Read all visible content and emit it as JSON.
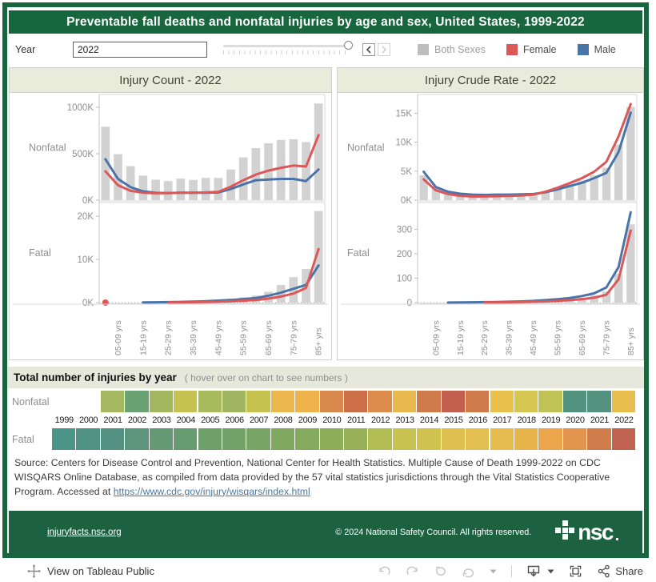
{
  "title": "Preventable fall deaths and nonfatal injuries by age and sex, United States, 1999-2022",
  "colors": {
    "brand_green": "#17663e",
    "footer_green": "#1d6240",
    "panel_header_bg": "#e9ecda",
    "section_header_bg": "#e6e8dc",
    "bar": "#d2d2d2",
    "female": "#dc5757",
    "male": "#4a74a8",
    "legend_gray": "#bdbdbd"
  },
  "year_control": {
    "label": "Year",
    "value": "2022"
  },
  "legend": {
    "items": [
      {
        "label": "Both Sexes",
        "color": "#bdbdbd"
      },
      {
        "label": "Female",
        "color": "#dc5757"
      },
      {
        "label": "Male",
        "color": "#4a74a8"
      }
    ]
  },
  "chart_data": {
    "type": "bar+line",
    "x_tick_labels": [
      "05-09 yrs",
      "15-19 yrs",
      "25-29 yrs",
      "35-39 yrs",
      "45-49 yrs",
      "55-59 yrs",
      "65-69 yrs",
      "75-79 yrs",
      "85+ yrs"
    ],
    "groups_count": 18,
    "panels": [
      {
        "id": "count",
        "title": "Injury Count - 2022",
        "rows": [
          {
            "label": "Nonfatal",
            "unit": "thousands",
            "ymax": 1060,
            "yticks": [
              {
                "v": 0,
                "t": "0K"
              },
              {
                "v": 500,
                "t": "500K"
              },
              {
                "v": 1000,
                "t": "1000K"
              }
            ],
            "bars": [
              790,
              495,
              365,
              265,
              220,
              205,
              232,
              218,
              240,
              240,
              330,
              460,
              560,
              612,
              648,
              655,
              625,
              1040
            ],
            "female": [
              310,
              160,
              100,
              80,
              74,
              77,
              80,
              80,
              83,
              88,
              145,
              215,
              275,
              318,
              348,
              372,
              362,
              700
            ],
            "male": [
              440,
              228,
              140,
              95,
              78,
              76,
              80,
              80,
              80,
              83,
              120,
              170,
              215,
              222,
              228,
              228,
              205,
              330
            ]
          },
          {
            "label": "Fatal",
            "unit": "thousands",
            "ymax": 21.5,
            "yticks": [
              {
                "v": 0,
                "t": "0K"
              },
              {
                "v": 10,
                "t": "10K"
              },
              {
                "v": 20,
                "t": "20K"
              }
            ],
            "zero_dotted": true,
            "bars": [
              0.05,
              0.02,
              0.02,
              0.06,
              0.1,
              0.15,
              0.22,
              0.3,
              0.45,
              0.65,
              0.9,
              1.25,
              1.65,
              2.5,
              4.1,
              5.9,
              7.8,
              21.2
            ],
            "female": [
              0,
              0,
              0,
              0.02,
              0.03,
              0.05,
              0.07,
              0.1,
              0.15,
              0.2,
              0.3,
              0.45,
              0.62,
              0.92,
              1.4,
              2.1,
              3.4,
              12.4
            ],
            "male": [
              0,
              0,
              0.01,
              0.05,
              0.08,
              0.12,
              0.16,
              0.22,
              0.32,
              0.46,
              0.62,
              0.82,
              1.05,
              1.6,
              2.3,
              3.2,
              4.1,
              8.6
            ],
            "female_start": 5,
            "male_start": 3,
            "dot": {
              "series": "female",
              "index": 0,
              "value": 0
            }
          }
        ]
      },
      {
        "id": "rate",
        "title": "Injury Crude Rate - 2022",
        "rows": [
          {
            "label": "Nonfatal",
            "unit": "per 100,000 (thousands)",
            "ymax": 17,
            "yticks": [
              {
                "v": 0,
                "t": "0K"
              },
              {
                "v": 5,
                "t": "5K"
              },
              {
                "v": 10,
                "t": "10K"
              },
              {
                "v": 15,
                "t": "15K"
              }
            ],
            "bars": [
              4.3,
              2.0,
              1.25,
              0.95,
              0.82,
              0.8,
              0.85,
              0.85,
              0.9,
              1.0,
              1.4,
              2.0,
              2.7,
              3.4,
              4.3,
              5.6,
              9.6,
              16.1
            ],
            "female": [
              3.6,
              1.7,
              1.05,
              0.75,
              0.62,
              0.63,
              0.68,
              0.73,
              0.8,
              0.95,
              1.45,
              2.15,
              2.95,
              3.8,
              4.9,
              6.6,
              11.0,
              16.6
            ],
            "male": [
              4.9,
              2.25,
              1.45,
              1.1,
              0.95,
              0.9,
              0.95,
              0.95,
              1.0,
              1.05,
              1.35,
              1.85,
              2.45,
              3.0,
              3.8,
              4.7,
              8.3,
              15.1
            ]
          },
          {
            "label": "Fatal",
            "unit": "per 100,000",
            "ymax": 380,
            "yticks": [
              {
                "v": 0,
                "t": "0"
              },
              {
                "v": 100,
                "t": "100"
              },
              {
                "v": 200,
                "t": "200"
              },
              {
                "v": 300,
                "t": "300"
              }
            ],
            "zero_dotted": true,
            "bars": [
              0.4,
              0.2,
              0.2,
              0.7,
              1.0,
              1.4,
              1.9,
              2.6,
              3.6,
              5,
              7,
              10,
              14,
              20,
              30,
              45,
              118,
              320
            ],
            "female": [
              0.3,
              0.1,
              0.1,
              0.5,
              0.7,
              1.0,
              1.3,
              1.8,
              2.5,
              3.5,
              5,
              7,
              10,
              14,
              20,
              32,
              95,
              295
            ],
            "male": [
              0.6,
              0.2,
              0.3,
              1.0,
              1.4,
              2.0,
              2.7,
              3.7,
              5,
              7,
              10,
              14,
              19,
              27,
              38,
              62,
              145,
              370
            ],
            "female_start": 5,
            "male_start": 2
          }
        ]
      }
    ]
  },
  "heatmap": {
    "title": "Total number of injuries by year",
    "hint": "( hover over on chart to see numbers )",
    "years": [
      "1999",
      "2000",
      "2001",
      "2002",
      "2003",
      "2004",
      "2005",
      "2006",
      "2007",
      "2008",
      "2009",
      "2010",
      "2011",
      "2012",
      "2013",
      "2014",
      "2015",
      "2016",
      "2017",
      "2018",
      "2019",
      "2020",
      "2021",
      "2022"
    ],
    "nonfatal": {
      "label": "Nonfatal",
      "start_year": "2001",
      "colors": [
        "#a6b85f",
        "#6aa273",
        "#a3b75f",
        "#c5c251",
        "#a9ba5e",
        "#9fb562",
        "#c6c250",
        "#ecb84d",
        "#eeb44b",
        "#d8894e",
        "#cc6f49",
        "#dc8c4c",
        "#eab94e",
        "#cf7a4b",
        "#c2604d",
        "#ce7a4a",
        "#e9c24e",
        "#d5c64f",
        "#bfc254",
        "#53917f",
        "#55917f",
        "#e7bd4e"
      ]
    },
    "fatal": {
      "label": "Fatal",
      "colors": [
        "#4a9488",
        "#4f9284",
        "#549182",
        "#5c947c",
        "#649973",
        "#679b70",
        "#6fa06a",
        "#72a268",
        "#78a465",
        "#80a860",
        "#84aa5e",
        "#8ead5b",
        "#97b158",
        "#b2bd54",
        "#c8c350",
        "#d0c24e",
        "#ddc04e",
        "#e2bf4e",
        "#e5bc4d",
        "#e8b54d",
        "#eba64c",
        "#e0944d",
        "#d07c4b",
        "#bf6350"
      ]
    }
  },
  "source": {
    "text_before_link": "Source: Centers for Disease Control and Prevention, National Center for Health Statistics. Multiple Cause of Death 1999-2022 on CDC WISQARS Online Database, as compiled from data provided by the 57 vital statistics jurisdictions through the Vital Statistics Cooperative Program. Accessed at ",
    "link": "https://www.cdc.gov/injury/wisqars/index.html"
  },
  "footer": {
    "site_link": "injuryfacts.nsc.org",
    "copyright": "© 2024 National Safety Council. All rights reserved.",
    "logo_text": "nsc"
  },
  "toolbar": {
    "view_label": "View on Tableau Public",
    "share_label": "Share"
  }
}
